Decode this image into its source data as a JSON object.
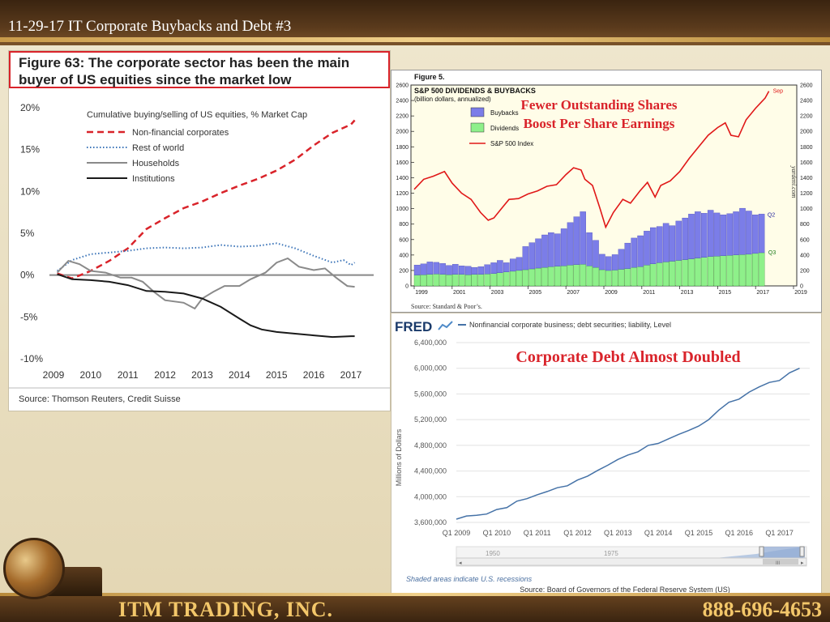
{
  "slide": {
    "title": "11-29-17 IT Corporate Buybacks and Debt #3",
    "company": "ITM TRADING, INC.",
    "phone": "888-696-4653"
  },
  "figure63": {
    "title_bold": "Figure 63:",
    "title_rest": " The corporate sector has been the main buyer of US equities since the market low",
    "source": "Source: Thomson Reuters, Credit Suisse"
  },
  "figure5": {
    "label": "Figure 5.",
    "source": "Source: Standard & Poor’s.",
    "watermark": "yardeni.com",
    "overlay_line1": "Fewer Outstanding Shares",
    "overlay_line2": "Boost Per Share Earnings"
  },
  "fred": {
    "logo": "FRED",
    "overlay": "Corporate Debt Almost Doubled",
    "slider_labels": [
      "1950",
      "1975"
    ],
    "shaded_note": "Shaded areas indicate U.S. recessions",
    "source": "Source: Board of Governors of the Federal Reserve System (US)"
  },
  "chart_data": [
    {
      "type": "line",
      "title": "",
      "subtitle": "Cumulative buying/selling of US equities, % Market Cap",
      "xlabel": "",
      "ylabel": "",
      "xlim": [
        2009,
        2017.2
      ],
      "ylim": [
        -10,
        20
      ],
      "x_ticks": [
        2009,
        2010,
        2011,
        2012,
        2013,
        2014,
        2015,
        2016,
        2017
      ],
      "y_ticks": [
        -10,
        -5,
        0,
        5,
        10,
        15,
        20
      ],
      "y_tick_labels": [
        "-10%",
        "-5%",
        "0%",
        "5%",
        "10%",
        "15%",
        "20%"
      ],
      "grid": false,
      "legend_position": "top-left",
      "series": [
        {
          "name": "Non-financial corporates",
          "color": "#d9232a",
          "style": "dashed",
          "points": [
            [
              2009.1,
              0.2
            ],
            [
              2009.5,
              -0.4
            ],
            [
              2010,
              0.5
            ],
            [
              2010.5,
              1.7
            ],
            [
              2011,
              3.2
            ],
            [
              2011.5,
              5.5
            ],
            [
              2012,
              6.8
            ],
            [
              2012.5,
              8
            ],
            [
              2013,
              8.8
            ],
            [
              2013.5,
              9.8
            ],
            [
              2014,
              10.7
            ],
            [
              2014.5,
              11.5
            ],
            [
              2015,
              12.5
            ],
            [
              2015.5,
              13.8
            ],
            [
              2016,
              15.5
            ],
            [
              2016.5,
              17
            ],
            [
              2017,
              18
            ],
            [
              2017.1,
              18.5
            ]
          ]
        },
        {
          "name": "Rest of world",
          "color": "#3b74b8",
          "style": "dotted",
          "points": [
            [
              2009.1,
              0.5
            ],
            [
              2009.5,
              1.8
            ],
            [
              2010,
              2.5
            ],
            [
              2010.5,
              2.7
            ],
            [
              2011,
              2.9
            ],
            [
              2011.5,
              3.2
            ],
            [
              2012,
              3.3
            ],
            [
              2012.5,
              3.2
            ],
            [
              2013,
              3.3
            ],
            [
              2013.5,
              3.6
            ],
            [
              2014,
              3.4
            ],
            [
              2014.5,
              3.5
            ],
            [
              2015,
              3.8
            ],
            [
              2015.5,
              3.2
            ],
            [
              2016,
              2.3
            ],
            [
              2016.5,
              1.5
            ],
            [
              2016.8,
              1.8
            ],
            [
              2017,
              1.2
            ],
            [
              2017.1,
              1.5
            ]
          ]
        },
        {
          "name": "Households",
          "color": "#8a8a8a",
          "style": "solid",
          "points": [
            [
              2009.1,
              0.3
            ],
            [
              2009.4,
              1.7
            ],
            [
              2009.7,
              1.3
            ],
            [
              2010,
              0.5
            ],
            [
              2010.4,
              0.3
            ],
            [
              2010.8,
              -0.3
            ],
            [
              2011.1,
              -0.3
            ],
            [
              2011.4,
              -0.8
            ],
            [
              2011.7,
              -2
            ],
            [
              2012,
              -3
            ],
            [
              2012.5,
              -3.3
            ],
            [
              2012.8,
              -4
            ],
            [
              2013,
              -2.8
            ],
            [
              2013.3,
              -2
            ],
            [
              2013.6,
              -1.3
            ],
            [
              2014,
              -1.3
            ],
            [
              2014.3,
              -0.5
            ],
            [
              2014.7,
              0.3
            ],
            [
              2015,
              1.5
            ],
            [
              2015.3,
              2
            ],
            [
              2015.6,
              1
            ],
            [
              2016,
              0.6
            ],
            [
              2016.3,
              0.8
            ],
            [
              2016.6,
              -0.3
            ],
            [
              2016.9,
              -1.3
            ],
            [
              2017.1,
              -1.4
            ]
          ]
        },
        {
          "name": "Institutions",
          "color": "#1a1a1a",
          "style": "solid",
          "points": [
            [
              2009.1,
              0.1
            ],
            [
              2009.5,
              -0.5
            ],
            [
              2010,
              -0.6
            ],
            [
              2010.5,
              -0.8
            ],
            [
              2011,
              -1.2
            ],
            [
              2011.5,
              -1.9
            ],
            [
              2012,
              -2
            ],
            [
              2012.5,
              -2.2
            ],
            [
              2013,
              -2.8
            ],
            [
              2013.5,
              -3.8
            ],
            [
              2014,
              -5.2
            ],
            [
              2014.3,
              -6
            ],
            [
              2014.6,
              -6.5
            ],
            [
              2015,
              -6.8
            ],
            [
              2015.5,
              -7
            ],
            [
              2016,
              -7.2
            ],
            [
              2016.5,
              -7.4
            ],
            [
              2017,
              -7.3
            ],
            [
              2017.1,
              -7.3
            ]
          ]
        }
      ]
    },
    {
      "type": "bar",
      "title": "S&P 500 DIVIDENDS & BUYBACKS",
      "subtitle": "(billion dollars, annualized)",
      "xlim": [
        1999,
        2019
      ],
      "ylim": [
        0,
        2600
      ],
      "x_ticks": [
        1999,
        2001,
        2003,
        2005,
        2007,
        2009,
        2011,
        2013,
        2015,
        2017,
        2019
      ],
      "y_ticks": [
        0,
        200,
        400,
        600,
        800,
        1000,
        1200,
        1400,
        1600,
        1800,
        2000,
        2200,
        2400,
        2600
      ],
      "grid": false,
      "legend_position": "top-left",
      "annotations": [
        "Sep",
        "Q2",
        "Q3"
      ],
      "series": [
        {
          "name": "Buybacks",
          "color": "#7b7de8",
          "kind": "stacked-bar",
          "values": [
            130,
            140,
            160,
            150,
            140,
            120,
            130,
            110,
            110,
            90,
            100,
            120,
            140,
            160,
            120,
            160,
            170,
            300,
            340,
            380,
            420,
            440,
            420,
            480,
            550,
            620,
            680,
            430,
            350,
            200,
            180,
            200,
            260,
            330,
            380,
            400,
            440,
            470,
            470,
            500,
            460,
            510,
            540,
            580,
            600,
            570,
            600,
            560,
            530,
            540,
            560,
            600,
            560,
            500,
            500
          ]
        },
        {
          "name": "Dividends",
          "color": "#8ef08a",
          "kind": "stacked-bar",
          "values": [
            140,
            145,
            150,
            155,
            150,
            145,
            150,
            150,
            145,
            150,
            150,
            155,
            160,
            170,
            180,
            190,
            200,
            210,
            220,
            230,
            240,
            250,
            255,
            260,
            270,
            275,
            280,
            260,
            240,
            210,
            200,
            205,
            215,
            225,
            240,
            250,
            270,
            285,
            300,
            310,
            320,
            330,
            340,
            350,
            360,
            370,
            380,
            385,
            390,
            395,
            400,
            405,
            410,
            420,
            430
          ]
        },
        {
          "name": "S&P 500 Index",
          "color": "#e01818",
          "kind": "line",
          "points": [
            [
              1999,
              1250
            ],
            [
              1999.5,
              1380
            ],
            [
              2000,
              1420
            ],
            [
              2000.6,
              1480
            ],
            [
              2001,
              1330
            ],
            [
              2001.5,
              1200
            ],
            [
              2002,
              1120
            ],
            [
              2002.5,
              950
            ],
            [
              2002.9,
              850
            ],
            [
              2003.2,
              880
            ],
            [
              2003.6,
              1000
            ],
            [
              2004,
              1120
            ],
            [
              2004.5,
              1130
            ],
            [
              2005,
              1190
            ],
            [
              2005.5,
              1230
            ],
            [
              2006,
              1290
            ],
            [
              2006.5,
              1310
            ],
            [
              2007,
              1440
            ],
            [
              2007.4,
              1530
            ],
            [
              2007.8,
              1500
            ],
            [
              2008,
              1380
            ],
            [
              2008.4,
              1300
            ],
            [
              2008.8,
              1000
            ],
            [
              2009.1,
              760
            ],
            [
              2009.5,
              950
            ],
            [
              2010,
              1120
            ],
            [
              2010.4,
              1070
            ],
            [
              2010.9,
              1230
            ],
            [
              2011.3,
              1340
            ],
            [
              2011.7,
              1150
            ],
            [
              2012,
              1300
            ],
            [
              2012.5,
              1360
            ],
            [
              2013,
              1480
            ],
            [
              2013.5,
              1650
            ],
            [
              2014,
              1800
            ],
            [
              2014.5,
              1950
            ],
            [
              2015,
              2050
            ],
            [
              2015.4,
              2110
            ],
            [
              2015.7,
              1950
            ],
            [
              2016.1,
              1930
            ],
            [
              2016.5,
              2150
            ],
            [
              2017,
              2300
            ],
            [
              2017.5,
              2430
            ],
            [
              2017.7,
              2520
            ]
          ]
        }
      ]
    },
    {
      "type": "line",
      "title": "",
      "legend": "Nonfinancial corporate business; debt securities; liability, Level",
      "xlabel": "",
      "ylabel": "Millions of Dollars",
      "xlim": [
        2009,
        2017.75
      ],
      "ylim": [
        3600000,
        6400000
      ],
      "x_tick_labels": [
        "Q1 2009",
        "Q1 2010",
        "Q1 2011",
        "Q1 2012",
        "Q1 2013",
        "Q1 2014",
        "Q1 2015",
        "Q1 2016",
        "Q1 2017"
      ],
      "y_ticks": [
        3600000,
        4000000,
        4400000,
        4800000,
        5200000,
        5600000,
        6000000,
        6400000
      ],
      "y_tick_labels": [
        "3,600,000",
        "4,000,000",
        "4,400,000",
        "4,800,000",
        "5,200,000",
        "5,600,000",
        "6,000,000",
        "6,400,000"
      ],
      "grid": true,
      "series": [
        {
          "name": "Nonfinancial corporate business; debt securities; liability, Level",
          "color": "#4572a7",
          "points": [
            [
              2009,
              3650000
            ],
            [
              2009.25,
              3700000
            ],
            [
              2009.5,
              3710000
            ],
            [
              2009.75,
              3730000
            ],
            [
              2010,
              3800000
            ],
            [
              2010.25,
              3830000
            ],
            [
              2010.5,
              3930000
            ],
            [
              2010.75,
              3970000
            ],
            [
              2011,
              4030000
            ],
            [
              2011.25,
              4080000
            ],
            [
              2011.5,
              4140000
            ],
            [
              2011.75,
              4170000
            ],
            [
              2012,
              4260000
            ],
            [
              2012.25,
              4320000
            ],
            [
              2012.5,
              4410000
            ],
            [
              2012.75,
              4490000
            ],
            [
              2013,
              4580000
            ],
            [
              2013.25,
              4650000
            ],
            [
              2013.5,
              4700000
            ],
            [
              2013.75,
              4800000
            ],
            [
              2014,
              4830000
            ],
            [
              2014.25,
              4900000
            ],
            [
              2014.5,
              4970000
            ],
            [
              2014.75,
              5030000
            ],
            [
              2015,
              5100000
            ],
            [
              2015.25,
              5200000
            ],
            [
              2015.5,
              5350000
            ],
            [
              2015.75,
              5470000
            ],
            [
              2016,
              5520000
            ],
            [
              2016.25,
              5630000
            ],
            [
              2016.5,
              5710000
            ],
            [
              2016.75,
              5780000
            ],
            [
              2017,
              5810000
            ],
            [
              2017.25,
              5930000
            ],
            [
              2017.5,
              6000000
            ]
          ]
        }
      ]
    }
  ]
}
